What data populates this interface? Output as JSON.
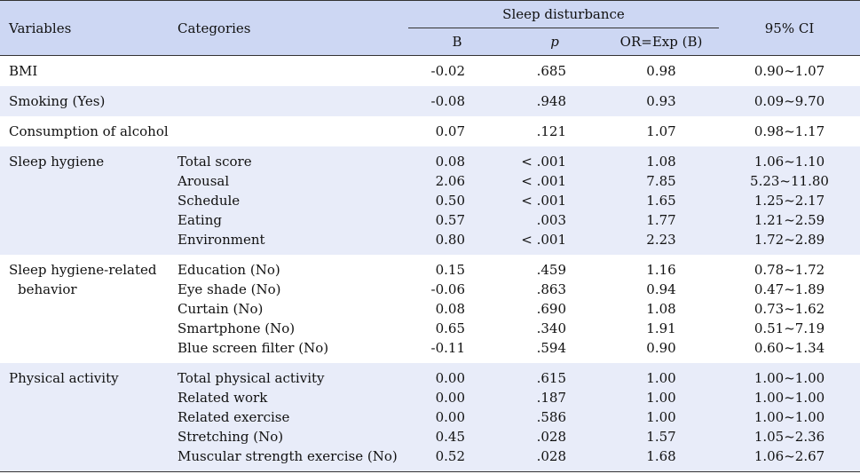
{
  "headers": {
    "variables": "Variables",
    "categories": "Categories",
    "group": "Sleep disturbance",
    "b": "B",
    "p": "p",
    "or": "OR=Exp (B)",
    "ci": "95% CI"
  },
  "rows": [
    {
      "variable": [
        "BMI"
      ],
      "items": [
        {
          "cat": "",
          "b": "-0.02",
          "p": ".685",
          "or": "0.98",
          "ci": "0.90~1.07"
        }
      ]
    },
    {
      "variable": [
        "Smoking (Yes)"
      ],
      "items": [
        {
          "cat": "",
          "b": "-0.08",
          "p": ".948",
          "or": "0.93",
          "ci": "0.09~9.70"
        }
      ]
    },
    {
      "variable": [
        "Consumption of alcohol"
      ],
      "items": [
        {
          "cat": "",
          "b": "0.07",
          "p": ".121",
          "or": "1.07",
          "ci": "0.98~1.17"
        }
      ]
    },
    {
      "variable": [
        "Sleep hygiene"
      ],
      "items": [
        {
          "cat": "Total score",
          "b": "0.08",
          "p": "< .001",
          "or": "1.08",
          "ci": "1.06~1.10"
        },
        {
          "cat": "Arousal",
          "b": "2.06",
          "p": "< .001",
          "or": "7.85",
          "ci": "5.23~11.80"
        },
        {
          "cat": "Schedule",
          "b": "0.50",
          "p": "< .001",
          "or": "1.65",
          "ci": "1.25~2.17"
        },
        {
          "cat": "Eating",
          "b": "0.57",
          "p": ".003",
          "or": "1.77",
          "ci": "1.21~2.59"
        },
        {
          "cat": "Environment",
          "b": "0.80",
          "p": "< .001",
          "or": "2.23",
          "ci": "1.72~2.89"
        }
      ]
    },
    {
      "variable": [
        "Sleep hygiene-related",
        "behavior"
      ],
      "items": [
        {
          "cat": "Education (No)",
          "b": "0.15",
          "p": ".459",
          "or": "1.16",
          "ci": "0.78~1.72"
        },
        {
          "cat": "Eye shade (No)",
          "b": "-0.06",
          "p": ".863",
          "or": "0.94",
          "ci": "0.47~1.89"
        },
        {
          "cat": "Curtain (No)",
          "b": "0.08",
          "p": ".690",
          "or": "1.08",
          "ci": "0.73~1.62"
        },
        {
          "cat": "Smartphone (No)",
          "b": "0.65",
          "p": ".340",
          "or": "1.91",
          "ci": "0.51~7.19"
        },
        {
          "cat": "Blue screen filter (No)",
          "b": "-0.11",
          "p": ".594",
          "or": "0.90",
          "ci": "0.60~1.34"
        }
      ]
    },
    {
      "variable": [
        "Physical activity"
      ],
      "items": [
        {
          "cat": "Total physical activity",
          "b": "0.00",
          "p": ".615",
          "or": "1.00",
          "ci": "1.00~1.00"
        },
        {
          "cat": "Related work",
          "b": "0.00",
          "p": ".187",
          "or": "1.00",
          "ci": "1.00~1.00"
        },
        {
          "cat": "Related exercise",
          "b": "0.00",
          "p": ".586",
          "or": "1.00",
          "ci": "1.00~1.00"
        },
        {
          "cat": "Stretching (No)",
          "b": "0.45",
          "p": ".028",
          "or": "1.57",
          "ci": "1.05~2.36"
        },
        {
          "cat": "Muscular strength exercise (No)",
          "b": "0.52",
          "p": ".028",
          "or": "1.68",
          "ci": "1.06~2.67"
        }
      ]
    }
  ]
}
